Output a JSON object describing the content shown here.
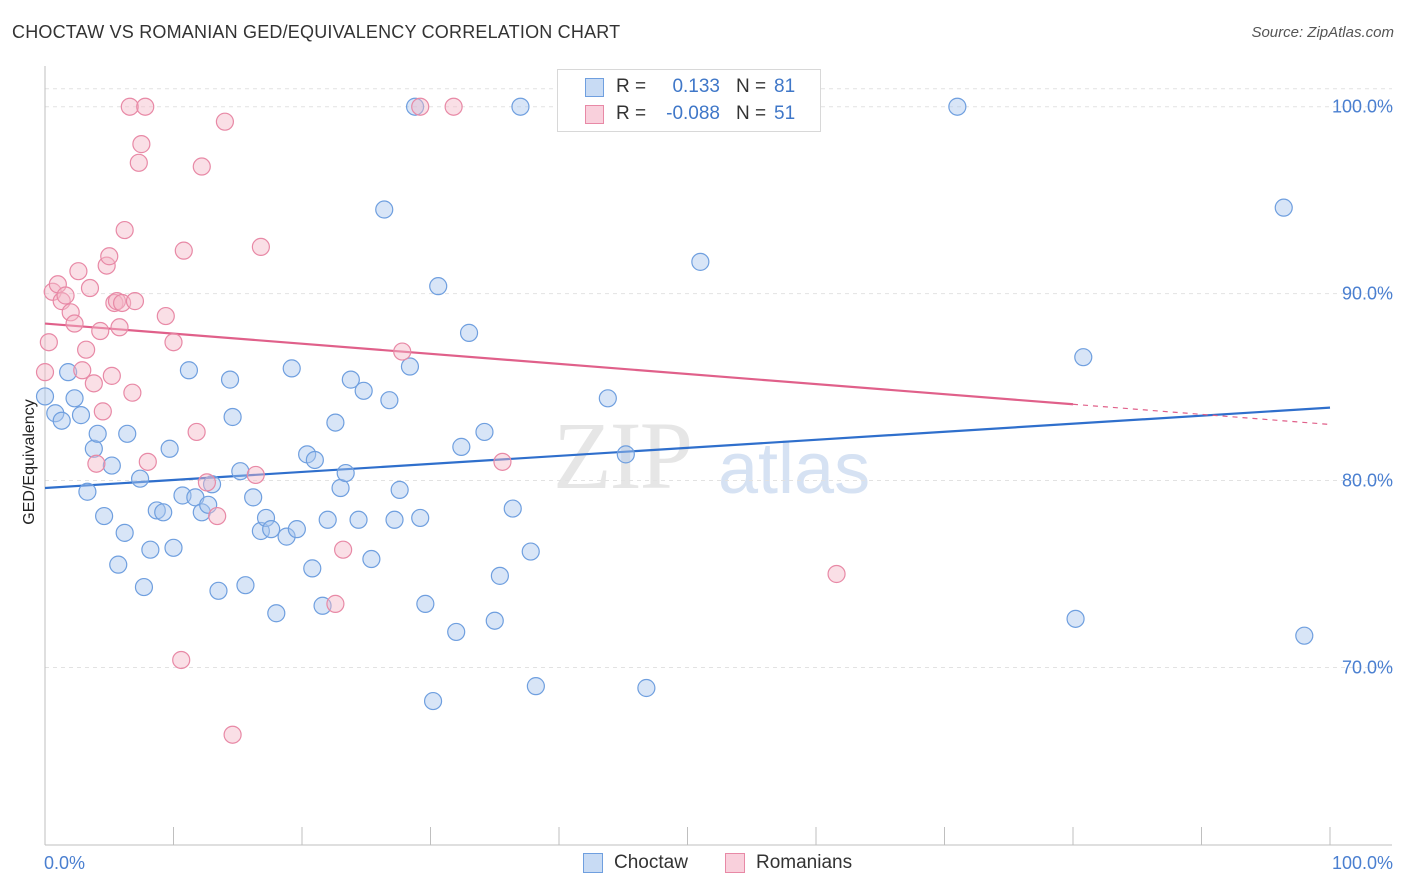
{
  "title": "CHOCTAW VS ROMANIAN GED/EQUIVALENCY CORRELATION CHART",
  "source": "Source: ZipAtlas.com",
  "watermark": {
    "zip": "ZIP",
    "atlas": "atlas"
  },
  "legend": {
    "rows": [
      {
        "r_label": "R =",
        "r_value": "0.133",
        "n_label": "N =",
        "n_value": "81",
        "color": "#a9c6ee"
      },
      {
        "r_label": "R =",
        "r_value": "-0.088",
        "n_label": "N =",
        "n_value": "51",
        "color": "#f5b8c8"
      }
    ]
  },
  "bottom_legend": [
    {
      "label": "Choctaw",
      "color": "#a9c6ee"
    },
    {
      "label": "Romanians",
      "color": "#f5b8c8"
    }
  ],
  "chart_data": {
    "type": "scatter",
    "title": "CHOCTAW VS ROMANIAN GED/EQUIVALENCY CORRELATION CHART",
    "xlabel": "",
    "ylabel": "GED/Equivalency",
    "xlim": [
      0,
      100
    ],
    "ylim": [
      60.5,
      102.5
    ],
    "x_tick_labels": [
      "0.0%",
      "100.0%"
    ],
    "y_ticks": [
      70,
      80,
      90,
      100
    ],
    "y_tick_labels": [
      "70.0%",
      "80.0%",
      "90.0%",
      "100.0%"
    ],
    "grid": true,
    "series": [
      {
        "name": "Choctaw",
        "color": "#a9c6ee",
        "stroke": "#6f9fdf",
        "trend": {
          "x0": 0,
          "y0": 79.6,
          "x1": 100,
          "y1": 83.9,
          "color": "#2f6fcc",
          "dash_from": null
        },
        "points": [
          [
            0.0,
            84.5
          ],
          [
            0.8,
            83.6
          ],
          [
            1.3,
            83.2
          ],
          [
            1.8,
            85.8
          ],
          [
            2.3,
            84.4
          ],
          [
            2.8,
            83.5
          ],
          [
            3.3,
            79.4
          ],
          [
            3.8,
            81.7
          ],
          [
            4.1,
            82.5
          ],
          [
            4.6,
            78.1
          ],
          [
            5.2,
            80.8
          ],
          [
            5.7,
            75.5
          ],
          [
            6.2,
            77.2
          ],
          [
            6.4,
            82.5
          ],
          [
            7.4,
            80.1
          ],
          [
            7.7,
            74.3
          ],
          [
            8.2,
            76.3
          ],
          [
            8.7,
            78.4
          ],
          [
            9.2,
            78.3
          ],
          [
            9.7,
            81.7
          ],
          [
            10.0,
            76.4
          ],
          [
            10.7,
            79.2
          ],
          [
            11.2,
            85.9
          ],
          [
            11.7,
            79.1
          ],
          [
            12.2,
            78.3
          ],
          [
            12.7,
            78.7
          ],
          [
            13.0,
            79.8
          ],
          [
            13.5,
            74.1
          ],
          [
            14.4,
            85.4
          ],
          [
            14.6,
            83.4
          ],
          [
            15.2,
            80.5
          ],
          [
            15.6,
            74.4
          ],
          [
            16.2,
            79.1
          ],
          [
            16.8,
            77.3
          ],
          [
            17.2,
            78.0
          ],
          [
            17.6,
            77.4
          ],
          [
            18.0,
            72.9
          ],
          [
            18.8,
            77.0
          ],
          [
            19.2,
            86.0
          ],
          [
            19.6,
            77.4
          ],
          [
            20.4,
            81.4
          ],
          [
            20.8,
            75.3
          ],
          [
            21.0,
            81.1
          ],
          [
            21.6,
            73.3
          ],
          [
            22.0,
            77.9
          ],
          [
            22.6,
            83.1
          ],
          [
            23.0,
            79.6
          ],
          [
            23.4,
            80.4
          ],
          [
            23.8,
            85.4
          ],
          [
            24.4,
            77.9
          ],
          [
            24.8,
            84.8
          ],
          [
            25.4,
            75.8
          ],
          [
            26.4,
            94.5
          ],
          [
            26.8,
            84.3
          ],
          [
            27.2,
            77.9
          ],
          [
            27.6,
            79.5
          ],
          [
            28.4,
            86.1
          ],
          [
            28.8,
            100.0
          ],
          [
            29.2,
            78.0
          ],
          [
            29.6,
            73.4
          ],
          [
            30.2,
            68.2
          ],
          [
            30.6,
            90.4
          ],
          [
            32.0,
            71.9
          ],
          [
            32.4,
            81.8
          ],
          [
            33.0,
            87.9
          ],
          [
            34.2,
            82.6
          ],
          [
            35.0,
            72.5
          ],
          [
            35.4,
            74.9
          ],
          [
            36.4,
            78.5
          ],
          [
            37.8,
            76.2
          ],
          [
            38.2,
            69.0
          ],
          [
            43.8,
            84.4
          ],
          [
            45.2,
            81.4
          ],
          [
            46.8,
            68.9
          ],
          [
            51.0,
            91.7
          ],
          [
            71.0,
            100.0
          ],
          [
            80.2,
            72.6
          ],
          [
            80.8,
            86.6
          ],
          [
            96.4,
            94.6
          ],
          [
            98.0,
            71.7
          ],
          [
            37.0,
            100.0
          ]
        ]
      },
      {
        "name": "Romanians",
        "color": "#f5b8c8",
        "stroke": "#e889a6",
        "trend": {
          "x0": 0,
          "y0": 88.4,
          "x1": 100,
          "y1": 83.0,
          "color": "#e0608a",
          "dash_from": 80
        },
        "points": [
          [
            0.0,
            85.8
          ],
          [
            0.3,
            87.4
          ],
          [
            0.6,
            90.1
          ],
          [
            1.0,
            90.5
          ],
          [
            1.3,
            89.6
          ],
          [
            1.6,
            89.9
          ],
          [
            2.0,
            89.0
          ],
          [
            2.3,
            88.4
          ],
          [
            2.6,
            91.2
          ],
          [
            2.9,
            85.9
          ],
          [
            3.2,
            87.0
          ],
          [
            3.5,
            90.3
          ],
          [
            3.8,
            85.2
          ],
          [
            4.0,
            80.9
          ],
          [
            4.3,
            88.0
          ],
          [
            4.5,
            83.7
          ],
          [
            4.8,
            91.5
          ],
          [
            5.0,
            92.0
          ],
          [
            5.2,
            85.6
          ],
          [
            5.4,
            89.5
          ],
          [
            5.6,
            89.6
          ],
          [
            5.8,
            88.2
          ],
          [
            6.0,
            89.5
          ],
          [
            6.2,
            93.4
          ],
          [
            6.6,
            100.0
          ],
          [
            6.8,
            84.7
          ],
          [
            7.0,
            89.6
          ],
          [
            7.3,
            97.0
          ],
          [
            7.5,
            98.0
          ],
          [
            7.8,
            100.0
          ],
          [
            8.0,
            81.0
          ],
          [
            9.4,
            88.8
          ],
          [
            10.0,
            87.4
          ],
          [
            10.6,
            70.4
          ],
          [
            10.8,
            92.3
          ],
          [
            11.8,
            82.6
          ],
          [
            12.2,
            96.8
          ],
          [
            12.6,
            79.9
          ],
          [
            13.4,
            78.1
          ],
          [
            14.0,
            99.2
          ],
          [
            14.6,
            66.4
          ],
          [
            16.4,
            80.3
          ],
          [
            16.8,
            92.5
          ],
          [
            22.6,
            73.4
          ],
          [
            23.2,
            76.3
          ],
          [
            27.8,
            86.9
          ],
          [
            29.2,
            100.0
          ],
          [
            31.8,
            100.0
          ],
          [
            35.6,
            81.0
          ],
          [
            56.6,
            100.0
          ],
          [
            61.6,
            75.0
          ]
        ]
      }
    ]
  }
}
